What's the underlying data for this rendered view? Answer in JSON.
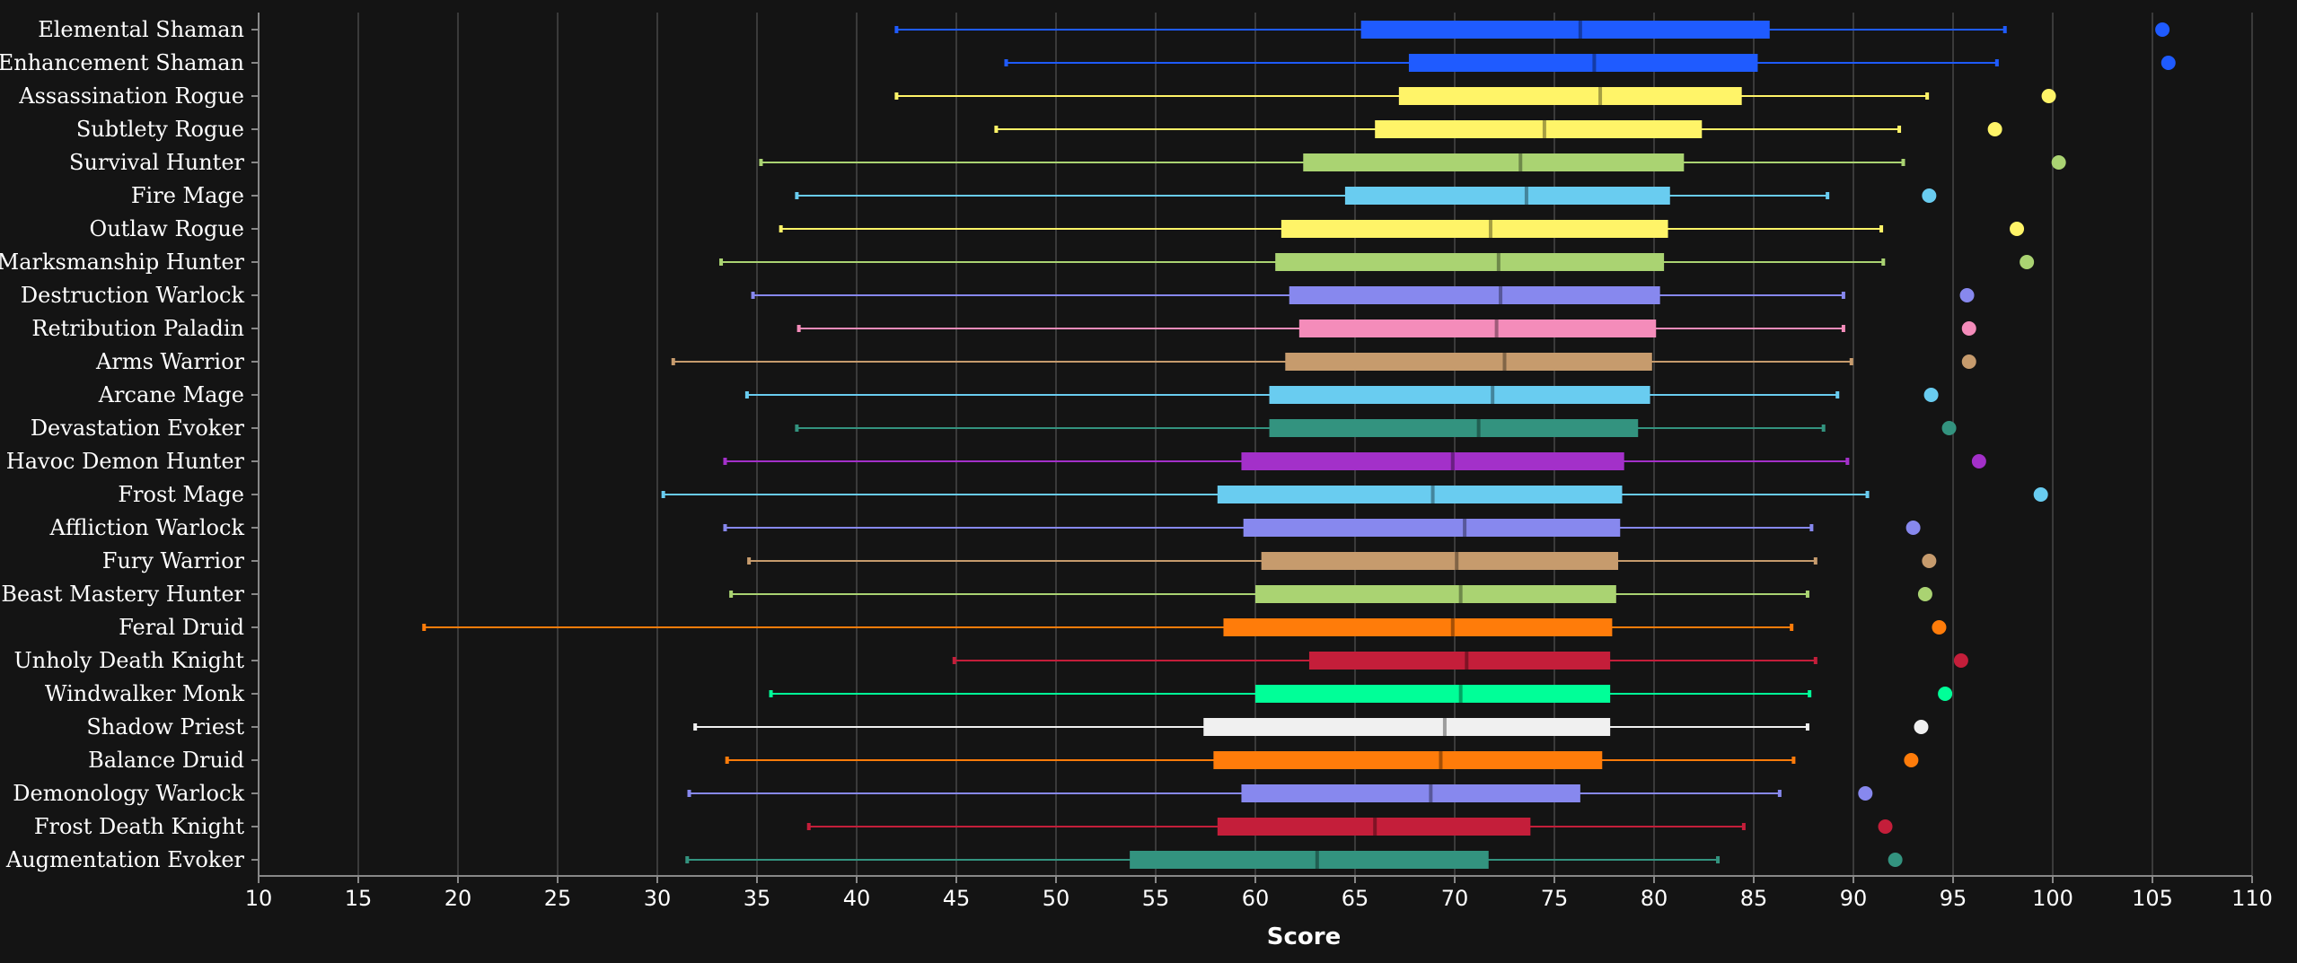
{
  "chart_data": {
    "type": "boxplot",
    "xlabel": "Score",
    "xlim": [
      10,
      110
    ],
    "x_ticks": [
      10,
      15,
      20,
      25,
      30,
      35,
      40,
      45,
      50,
      55,
      60,
      65,
      70,
      75,
      80,
      85,
      90,
      95,
      100,
      105,
      110
    ],
    "grid": true,
    "colors": {
      "background": "#141414",
      "grid": "#3a3a3a",
      "axis": "#888888",
      "text": "#ffffff"
    },
    "categories": [
      {
        "label": "Elemental Shaman",
        "color": "#1F5BFF",
        "min": 42.0,
        "q1": 65.3,
        "median": 76.3,
        "q3": 85.8,
        "max": 97.6,
        "top": 105.5
      },
      {
        "label": "Enhancement Shaman",
        "color": "#1F5BFF",
        "min": 47.5,
        "q1": 67.7,
        "median": 77.0,
        "q3": 85.2,
        "max": 97.2,
        "top": 105.8
      },
      {
        "label": "Assassination Rogue",
        "color": "#FFF468",
        "min": 42.0,
        "q1": 67.2,
        "median": 77.3,
        "q3": 84.4,
        "max": 93.7,
        "top": 99.8
      },
      {
        "label": "Subtlety Rogue",
        "color": "#FFF468",
        "min": 47.0,
        "q1": 66.0,
        "median": 74.5,
        "q3": 82.4,
        "max": 92.3,
        "top": 97.1
      },
      {
        "label": "Survival Hunter",
        "color": "#AAD372",
        "min": 35.2,
        "q1": 62.4,
        "median": 73.3,
        "q3": 81.5,
        "max": 92.5,
        "top": 100.3
      },
      {
        "label": "Fire Mage",
        "color": "#69CCF0",
        "min": 37.0,
        "q1": 64.5,
        "median": 73.6,
        "q3": 80.8,
        "max": 88.7,
        "top": 93.8
      },
      {
        "label": "Outlaw Rogue",
        "color": "#FFF468",
        "min": 36.2,
        "q1": 61.3,
        "median": 71.8,
        "q3": 80.7,
        "max": 91.4,
        "top": 98.2
      },
      {
        "label": "Marksmanship Hunter",
        "color": "#AAD372",
        "min": 33.2,
        "q1": 61.0,
        "median": 72.2,
        "q3": 80.5,
        "max": 91.5,
        "top": 98.7
      },
      {
        "label": "Destruction Warlock",
        "color": "#8788EE",
        "min": 34.8,
        "q1": 61.7,
        "median": 72.3,
        "q3": 80.3,
        "max": 89.5,
        "top": 95.7
      },
      {
        "label": "Retribution Paladin",
        "color": "#F48CBA",
        "min": 37.1,
        "q1": 62.2,
        "median": 72.1,
        "q3": 80.1,
        "max": 89.5,
        "top": 95.8
      },
      {
        "label": "Arms Warrior",
        "color": "#C69B6D",
        "min": 30.8,
        "q1": 61.5,
        "median": 72.5,
        "q3": 79.9,
        "max": 89.9,
        "top": 95.8
      },
      {
        "label": "Arcane Mage",
        "color": "#69CCF0",
        "min": 34.5,
        "q1": 60.7,
        "median": 71.9,
        "q3": 79.8,
        "max": 89.2,
        "top": 93.9
      },
      {
        "label": "Devastation Evoker",
        "color": "#33937F",
        "min": 37.0,
        "q1": 60.7,
        "median": 71.2,
        "q3": 79.2,
        "max": 88.5,
        "top": 94.8
      },
      {
        "label": "Havoc Demon Hunter",
        "color": "#A330C9",
        "min": 33.4,
        "q1": 59.3,
        "median": 69.9,
        "q3": 78.5,
        "max": 89.7,
        "top": 96.3
      },
      {
        "label": "Frost Mage",
        "color": "#69CCF0",
        "min": 30.3,
        "q1": 58.1,
        "median": 68.9,
        "q3": 78.4,
        "max": 90.7,
        "top": 99.4
      },
      {
        "label": "Affliction Warlock",
        "color": "#8788EE",
        "min": 33.4,
        "q1": 59.4,
        "median": 70.5,
        "q3": 78.3,
        "max": 87.9,
        "top": 93.0
      },
      {
        "label": "Fury Warrior",
        "color": "#C69B6D",
        "min": 34.6,
        "q1": 60.3,
        "median": 70.1,
        "q3": 78.2,
        "max": 88.1,
        "top": 93.8
      },
      {
        "label": "Beast Mastery Hunter",
        "color": "#AAD372",
        "min": 33.7,
        "q1": 60.0,
        "median": 70.3,
        "q3": 78.1,
        "max": 87.7,
        "top": 93.6
      },
      {
        "label": "Feral Druid",
        "color": "#FF7C0A",
        "min": 18.3,
        "q1": 58.4,
        "median": 69.9,
        "q3": 77.9,
        "max": 86.9,
        "top": 94.3
      },
      {
        "label": "Unholy Death Knight",
        "color": "#C41E3A",
        "min": 44.9,
        "q1": 62.7,
        "median": 70.6,
        "q3": 77.8,
        "max": 88.1,
        "top": 95.4
      },
      {
        "label": "Windwalker Monk",
        "color": "#00FF98",
        "min": 35.7,
        "q1": 60.0,
        "median": 70.3,
        "q3": 77.8,
        "max": 87.8,
        "top": 94.6
      },
      {
        "label": "Shadow Priest",
        "color": "#F0F0F0",
        "min": 31.9,
        "q1": 57.4,
        "median": 69.5,
        "q3": 77.8,
        "max": 87.7,
        "top": 93.4
      },
      {
        "label": "Balance Druid",
        "color": "#FF7C0A",
        "min": 33.5,
        "q1": 57.9,
        "median": 69.3,
        "q3": 77.4,
        "max": 87.0,
        "top": 92.9
      },
      {
        "label": "Demonology Warlock",
        "color": "#8788EE",
        "min": 31.6,
        "q1": 59.3,
        "median": 68.8,
        "q3": 76.3,
        "max": 86.3,
        "top": 90.6
      },
      {
        "label": "Frost Death Knight",
        "color": "#C41E3A",
        "min": 37.6,
        "q1": 58.1,
        "median": 66.0,
        "q3": 73.8,
        "max": 84.5,
        "top": 91.6
      },
      {
        "label": "Augmentation Evoker",
        "color": "#33937F",
        "min": 31.5,
        "q1": 53.7,
        "median": 63.1,
        "q3": 71.7,
        "max": 83.2,
        "top": 92.1
      }
    ]
  }
}
